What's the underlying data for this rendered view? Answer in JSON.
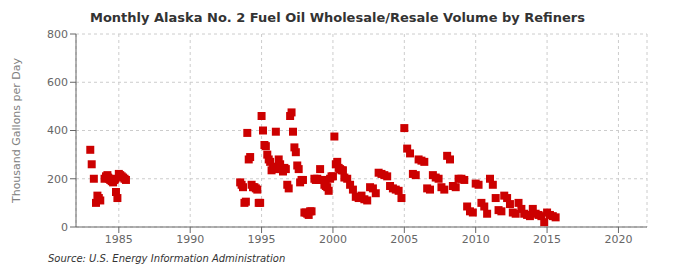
{
  "chart_data": {
    "type": "scatter",
    "title": "Monthly Alaska No. 2 Fuel Oil Wholesale/Resale Volume by Refiners",
    "ylabel": "Thousand Gallons per Day",
    "annotations": [
      "Source: U.S. Energy Information Administration"
    ],
    "color": "#cc0000",
    "marker": "square",
    "grid": true,
    "xlim": [
      1982,
      2022
    ],
    "ylim": [
      0,
      800
    ],
    "xticks": [
      1985,
      1990,
      1995,
      2000,
      2005,
      2010,
      2015,
      2020
    ],
    "yticks": [
      0,
      200,
      400,
      600,
      800
    ],
    "x": [
      1983.0,
      1983.1,
      1983.25,
      1983.4,
      1983.5,
      1983.6,
      1983.7,
      1984.0,
      1984.1,
      1984.2,
      1984.25,
      1984.3,
      1984.4,
      1984.5,
      1984.6,
      1984.7,
      1984.75,
      1984.8,
      1984.9,
      1985.0,
      1985.1,
      1985.2,
      1985.3,
      1985.4,
      1985.5,
      1993.5,
      1993.6,
      1993.7,
      1993.8,
      1993.9,
      1994.0,
      1994.1,
      1994.2,
      1994.3,
      1994.4,
      1994.5,
      1994.6,
      1994.7,
      1994.8,
      1994.9,
      1995.0,
      1995.1,
      1995.2,
      1995.3,
      1995.4,
      1995.5,
      1995.6,
      1995.7,
      1995.8,
      1995.9,
      1996.0,
      1996.1,
      1996.2,
      1996.3,
      1996.4,
      1996.5,
      1996.6,
      1996.7,
      1996.8,
      1996.9,
      1997.0,
      1997.1,
      1997.2,
      1997.3,
      1997.4,
      1997.5,
      1997.6,
      1997.7,
      1997.8,
      1997.9,
      1998.0,
      1998.1,
      1998.2,
      1998.3,
      1998.4,
      1998.5,
      1998.7,
      1998.8,
      1998.9,
      1999.0,
      1999.1,
      1999.2,
      1999.3,
      1999.4,
      1999.5,
      1999.6,
      1999.7,
      1999.8,
      1999.9,
      2000.0,
      2000.1,
      2000.2,
      2000.3,
      2000.4,
      2000.5,
      2000.6,
      2000.7,
      2000.8,
      2001.0,
      2001.2,
      2001.4,
      2001.6,
      2001.8,
      2002.0,
      2002.2,
      2002.4,
      2002.6,
      2002.8,
      2003.0,
      2003.2,
      2003.4,
      2003.6,
      2003.8,
      2004.0,
      2004.2,
      2004.4,
      2004.6,
      2004.8,
      2005.0,
      2005.2,
      2005.4,
      2005.6,
      2005.8,
      2006.0,
      2006.2,
      2006.4,
      2006.6,
      2006.8,
      2007.0,
      2007.2,
      2007.4,
      2007.6,
      2007.8,
      2008.0,
      2008.2,
      2008.4,
      2008.6,
      2008.8,
      2009.0,
      2009.2,
      2009.4,
      2009.6,
      2009.8,
      2010.0,
      2010.2,
      2010.4,
      2010.6,
      2010.8,
      2011.0,
      2011.2,
      2011.4,
      2011.6,
      2011.8,
      2012.0,
      2012.2,
      2012.4,
      2012.6,
      2012.8,
      2013.0,
      2013.2,
      2013.4,
      2013.6,
      2013.8,
      2014.0,
      2014.2,
      2014.4,
      2014.6,
      2014.8,
      2015.0,
      2015.2,
      2015.4,
      2015.6
    ],
    "values": [
      320,
      260,
      200,
      100,
      130,
      120,
      110,
      200,
      210,
      215,
      205,
      200,
      195,
      190,
      185,
      195,
      200,
      145,
      120,
      220,
      215,
      210,
      205,
      200,
      195,
      185,
      175,
      165,
      100,
      105,
      390,
      280,
      290,
      175,
      165,
      165,
      160,
      155,
      100,
      100,
      460,
      400,
      340,
      335,
      300,
      280,
      270,
      235,
      245,
      240,
      395,
      250,
      280,
      260,
      240,
      230,
      245,
      240,
      175,
      160,
      460,
      475,
      395,
      330,
      310,
      255,
      240,
      185,
      195,
      195,
      60,
      60,
      55,
      50,
      65,
      65,
      200,
      195,
      200,
      195,
      240,
      195,
      195,
      175,
      170,
      165,
      150,
      200,
      210,
      210,
      375,
      260,
      270,
      245,
      240,
      235,
      235,
      205,
      200,
      175,
      155,
      125,
      120,
      130,
      115,
      110,
      165,
      160,
      140,
      225,
      220,
      215,
      210,
      170,
      160,
      155,
      150,
      120,
      410,
      325,
      305,
      220,
      215,
      280,
      275,
      270,
      160,
      155,
      215,
      205,
      200,
      165,
      155,
      295,
      280,
      170,
      165,
      200,
      200,
      195,
      85,
      65,
      60,
      180,
      175,
      100,
      85,
      55,
      200,
      175,
      120,
      70,
      65,
      130,
      120,
      95,
      60,
      55,
      100,
      75,
      55,
      50,
      45,
      75,
      55,
      50,
      45,
      20,
      60,
      50,
      45,
      40
    ]
  }
}
